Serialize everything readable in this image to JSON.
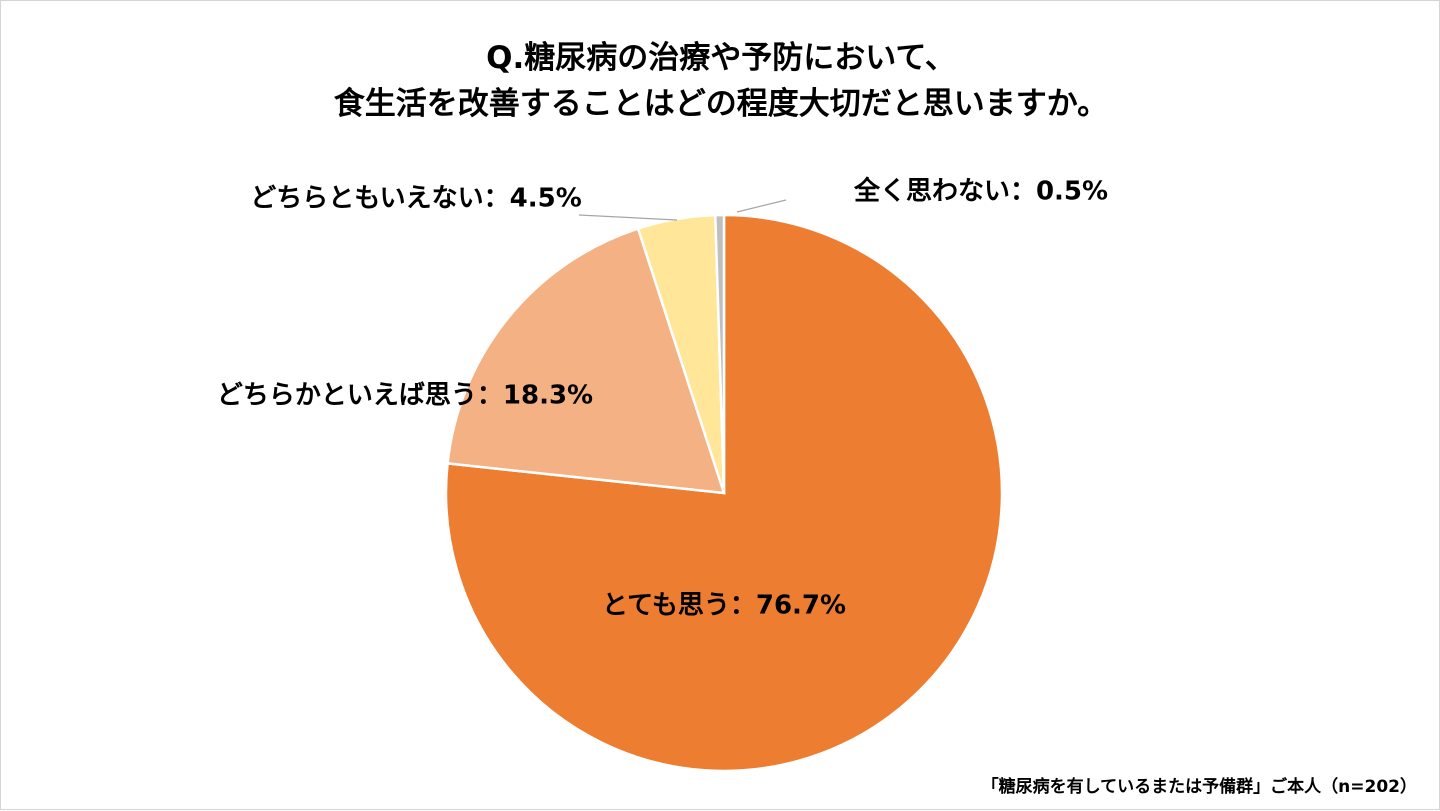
{
  "title": {
    "line1": "Q.糖尿病の治療や予防において、",
    "line2": "食生活を改善することはどの程度大切だと思いますか。"
  },
  "footnote": "「糖尿病を有しているまたは予備群」ご本人（n=202）",
  "chart_data": {
    "type": "pie",
    "title": "Q.糖尿病の治療や予防において、食生活を改善することはどの程度大切だと思いますか。",
    "start": "12 o'clock",
    "direction": "clockwise",
    "slices": [
      {
        "name": "とても思う",
        "value": 76.7,
        "label": "とても思う：76.7%",
        "color": "#ed7d31",
        "label_position": "inside"
      },
      {
        "name": "どちらかといえば思う",
        "value": 18.3,
        "label": "どちらかといえば思う：18.3%",
        "color": "#f4b183",
        "label_position": "outside-left"
      },
      {
        "name": "どちらともいえない",
        "value": 4.5,
        "label": "どちらともいえない：4.5%",
        "color": "#ffe699",
        "label_position": "outside-top-left"
      },
      {
        "name": "全く思わない",
        "value": 0.5,
        "label": "全く思わない：0.5%",
        "color": "#bfbfbf",
        "label_position": "outside-top-right"
      }
    ]
  }
}
